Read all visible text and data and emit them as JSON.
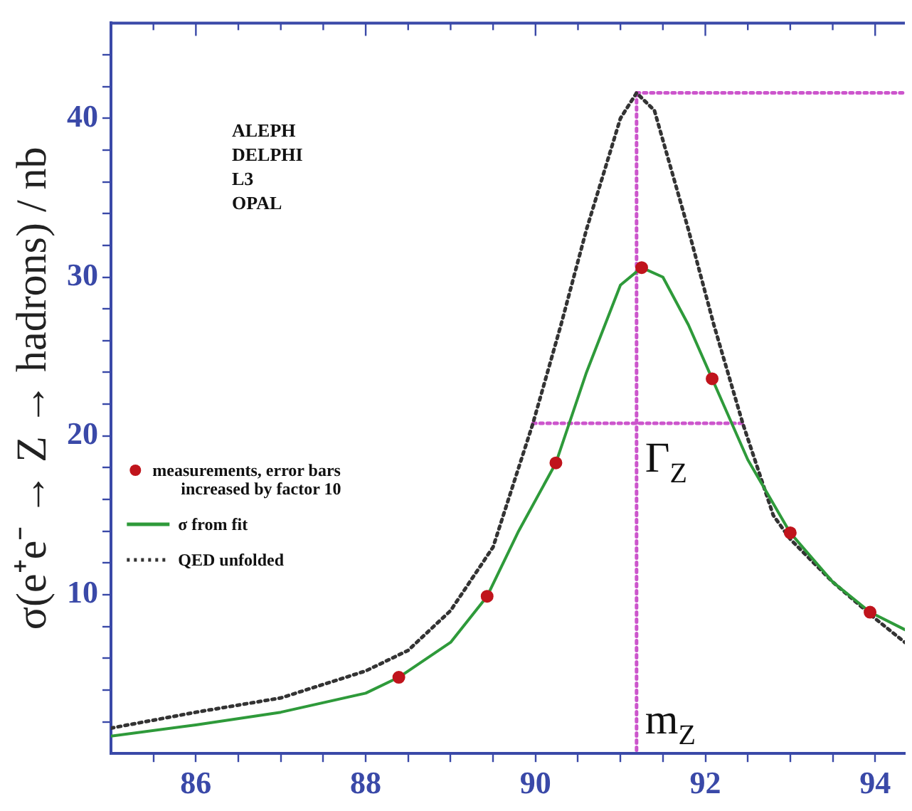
{
  "chart_data": {
    "type": "line",
    "ylabel": "σ(e⁺e⁻ → Z → hadrons) / nb",
    "xlim": [
      85,
      94.35
    ],
    "ylim": [
      0,
      46
    ],
    "xticks": [
      {
        "value": 85.5,
        "label": null
      },
      86,
      {
        "value": 86.5,
        "label": null
      },
      {
        "value": 87,
        "label": null
      },
      {
        "value": 87.5,
        "label": null
      },
      88,
      {
        "value": 88.5,
        "label": null
      },
      {
        "value": 89,
        "label": null
      },
      {
        "value": 89.5,
        "label": null
      },
      90,
      {
        "value": 90.5,
        "label": null
      },
      {
        "value": 91,
        "label": null
      },
      {
        "value": 91.5,
        "label": null
      },
      92,
      {
        "value": 92.5,
        "label": null
      },
      {
        "value": 93,
        "label": null
      },
      {
        "value": 93.5,
        "label": null
      },
      94
    ],
    "yticks": [
      {
        "value": 2,
        "label": null
      },
      {
        "value": 4,
        "label": null
      },
      {
        "value": 6,
        "label": null
      },
      {
        "value": 8,
        "label": null
      },
      10,
      {
        "value": 12,
        "label": null
      },
      {
        "value": 14,
        "label": null
      },
      {
        "value": 16,
        "label": null
      },
      {
        "value": 18,
        "label": null
      },
      20,
      {
        "value": 22,
        "label": null
      },
      {
        "value": 24,
        "label": null
      },
      {
        "value": 26,
        "label": null
      },
      {
        "value": 28,
        "label": null
      },
      30,
      {
        "value": 32,
        "label": null
      },
      {
        "value": 34,
        "label": null
      },
      {
        "value": 36,
        "label": null
      },
      {
        "value": 38,
        "label": null
      },
      40,
      {
        "value": 42,
        "label": null
      },
      {
        "value": 44,
        "label": null
      }
    ],
    "grid": false,
    "legend": "left",
    "annotations": [
      "ALEPH",
      "DELPHI",
      "L3",
      "OPAL",
      {
        "text": "Γ$_{Z}$",
        "x": 91.19,
        "y": 20.8
      },
      {
        "text": "m$_{Z}$",
        "x": 91.19,
        "y": 0
      }
    ],
    "series": [
      {
        "name": "measurements, error bars increased by factor 10",
        "type": "scatter",
        "marker": "circle",
        "color": "#c0141c",
        "x": [
          88.39,
          89.43,
          90.24,
          91.25,
          92.08,
          93.0,
          93.94
        ],
        "values": [
          4.8,
          9.9,
          18.3,
          30.6,
          23.6,
          13.9,
          8.9
        ]
      },
      {
        "name": "σ from fit",
        "color": "#2e9a3a",
        "line_style": "solid",
        "x": [
          85,
          86,
          87,
          88,
          88.39,
          89,
          89.43,
          89.8,
          90.24,
          90.6,
          91.0,
          91.25,
          91.5,
          91.8,
          92.08,
          92.5,
          93.0,
          93.5,
          93.94,
          94.35
        ],
        "values": [
          1.1,
          1.8,
          2.6,
          3.8,
          4.8,
          7.0,
          9.9,
          14,
          18.3,
          24,
          29.5,
          30.6,
          30,
          27,
          23.6,
          18.5,
          13.9,
          10.8,
          8.9,
          7.8
        ]
      },
      {
        "name": "QED unfolded",
        "color": "#333333",
        "line_style": "dotted",
        "x": [
          85,
          86,
          87,
          88,
          88.5,
          89,
          89.5,
          89.97,
          90.3,
          90.6,
          91.0,
          91.19,
          91.4,
          91.8,
          92.1,
          92.44,
          92.8,
          93.0,
          93.5,
          94.0,
          94.35
        ],
        "values": [
          1.6,
          2.6,
          3.5,
          5.2,
          6.5,
          9,
          13,
          20.8,
          27,
          33,
          40,
          41.6,
          40.5,
          33,
          27,
          20.8,
          15,
          13.5,
          10.8,
          8.5,
          7.0
        ]
      },
      {
        "type": "line",
        "color": "#cc55cc",
        "line_style": "dotted",
        "x": [
          91.19,
          94.35
        ],
        "values": [
          41.6,
          41.6
        ]
      },
      {
        "type": "line",
        "color": "#cc55cc",
        "line_style": "dotted",
        "x": [
          91.19,
          91.19
        ],
        "values": [
          41.6,
          0
        ]
      },
      {
        "type": "line",
        "color": "#cc55cc",
        "line_style": "dotted",
        "x": [
          89.97,
          92.44
        ],
        "values": [
          20.8,
          20.8
        ]
      }
    ]
  }
}
